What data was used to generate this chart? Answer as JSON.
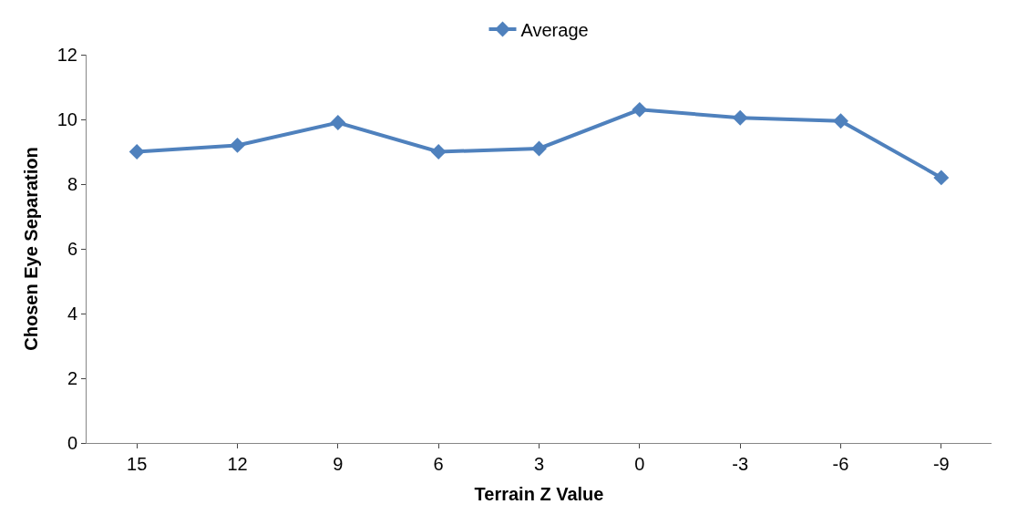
{
  "chart_data": {
    "type": "line",
    "xlabel": "Terrain Z Value",
    "ylabel": "Chosen Eye Separation",
    "categories": [
      "15",
      "12",
      "9",
      "6",
      "3",
      "0",
      "-3",
      "-6",
      "-9"
    ],
    "series": [
      {
        "name": "Average",
        "color": "#4f81bd",
        "values": [
          9.0,
          9.2,
          9.9,
          9.0,
          9.1,
          10.3,
          10.05,
          9.95,
          8.2
        ]
      }
    ],
    "ylim": [
      0,
      12
    ],
    "yticks": [
      0,
      2,
      4,
      6,
      8,
      10,
      12
    ],
    "legend": "top",
    "marker": "diamond",
    "line_style": "solid"
  }
}
